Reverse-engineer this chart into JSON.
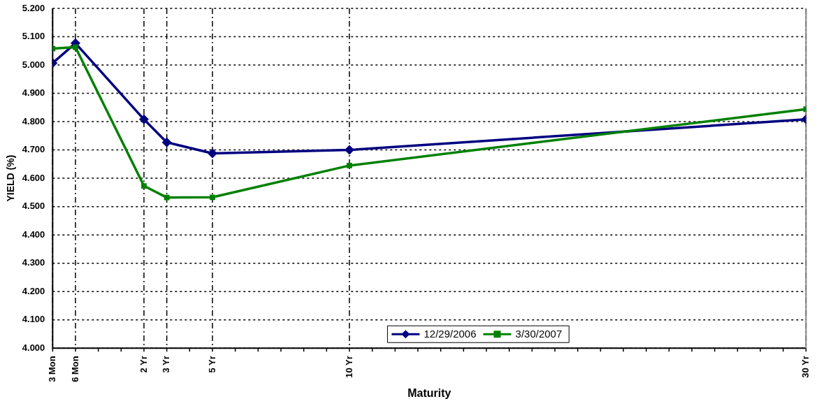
{
  "chart_data": {
    "type": "line",
    "xlabel": "Maturity",
    "ylabel": "YIELD (%)",
    "categories": [
      "3 Mon",
      "6 Mon",
      null,
      null,
      "2 Yr",
      "3 Yr",
      null,
      "5 Yr",
      null,
      null,
      null,
      null,
      null,
      "10 Yr",
      null,
      null,
      null,
      null,
      null,
      null,
      null,
      null,
      null,
      null,
      null,
      null,
      null,
      null,
      null,
      null,
      null,
      null,
      null,
      "30 Yr"
    ],
    "series": [
      {
        "name": "12/29/2006",
        "color": "#000080",
        "marker": "diamond",
        "values": [
          5.007,
          5.077,
          null,
          null,
          4.808,
          4.727,
          null,
          4.688,
          null,
          null,
          null,
          null,
          null,
          4.7,
          null,
          null,
          null,
          null,
          null,
          null,
          null,
          null,
          null,
          null,
          null,
          null,
          null,
          null,
          null,
          null,
          null,
          null,
          null,
          4.808
        ]
      },
      {
        "name": "3/30/2007",
        "color": "#008000",
        "marker": "square",
        "values": [
          5.058,
          5.063,
          null,
          null,
          4.573,
          4.532,
          null,
          4.533,
          null,
          null,
          null,
          null,
          null,
          4.645,
          null,
          null,
          null,
          null,
          null,
          null,
          null,
          null,
          null,
          null,
          null,
          null,
          null,
          null,
          null,
          null,
          null,
          null,
          null,
          4.844
        ]
      }
    ],
    "ylim": [
      4.0,
      5.2
    ],
    "yticks": [
      {
        "value": 4.0,
        "label": "4.000"
      },
      {
        "value": 4.1,
        "label": "4.100"
      },
      {
        "value": 4.2,
        "label": "4.200"
      },
      {
        "value": 4.3,
        "label": "4.300"
      },
      {
        "value": 4.4,
        "label": "4.400"
      },
      {
        "value": 4.5,
        "label": "4.500"
      },
      {
        "value": 4.6,
        "label": "4.600"
      },
      {
        "value": 4.7,
        "label": "4.700"
      },
      {
        "value": 4.8,
        "label": "4.800"
      },
      {
        "value": 4.9,
        "label": "4.900"
      },
      {
        "value": 5.0,
        "label": "5.000"
      },
      {
        "value": 5.1,
        "label": "5.100"
      },
      {
        "value": 5.2,
        "label": "5.200"
      }
    ],
    "grid": true,
    "legend": "bottom",
    "line_style": "solid"
  }
}
